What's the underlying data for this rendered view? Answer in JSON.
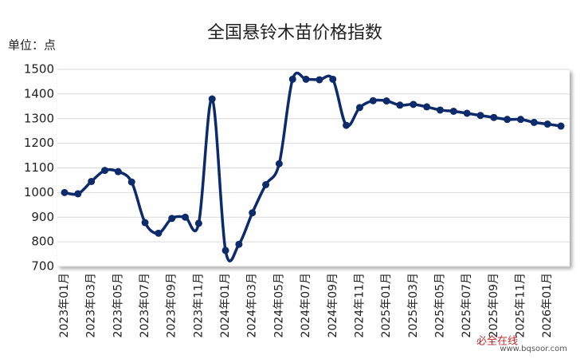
{
  "chart_data": {
    "type": "line",
    "title": "全国悬铃木苗价格指数",
    "y_unit": "单位：点",
    "categories": [
      "2023年01月",
      null,
      "2023年03月",
      null,
      "2023年05月",
      null,
      "2023年07月",
      null,
      "2023年09月",
      null,
      "2023年11月",
      null,
      "2024年01月",
      null,
      "2024年03月",
      null,
      "2024年05月",
      null,
      "2024年07月",
      null,
      "2024年09月",
      null,
      "2024年11月",
      null,
      "2025年01月",
      null,
      "2025年03月",
      null,
      "2025年05月",
      null,
      "2025年07月",
      null,
      "2025年09月",
      null,
      "2025年11月",
      null,
      "2026年01月",
      null
    ],
    "series": [
      {
        "name": "全国悬铃木苗价格指数",
        "color": "#0d2a6b",
        "values": [
          1000,
          995,
          1045,
          1090,
          1085,
          1043,
          878,
          835,
          895,
          900,
          875,
          1380,
          765,
          790,
          918,
          1032,
          1117,
          1460,
          1460,
          1458,
          1460,
          1273,
          1345,
          1373,
          1372,
          1355,
          1358,
          1348,
          1335,
          1330,
          1322,
          1313,
          1305,
          1297,
          1297,
          1285,
          1278,
          1270
        ]
      }
    ],
    "ylim": [
      700,
      1500
    ],
    "yticks": [
      700,
      800,
      900,
      1000,
      1100,
      1200,
      1300,
      1400,
      1500
    ],
    "grid": true,
    "watermark": {
      "name": "必全在线",
      "url": "www.bqsoor.com"
    }
  }
}
